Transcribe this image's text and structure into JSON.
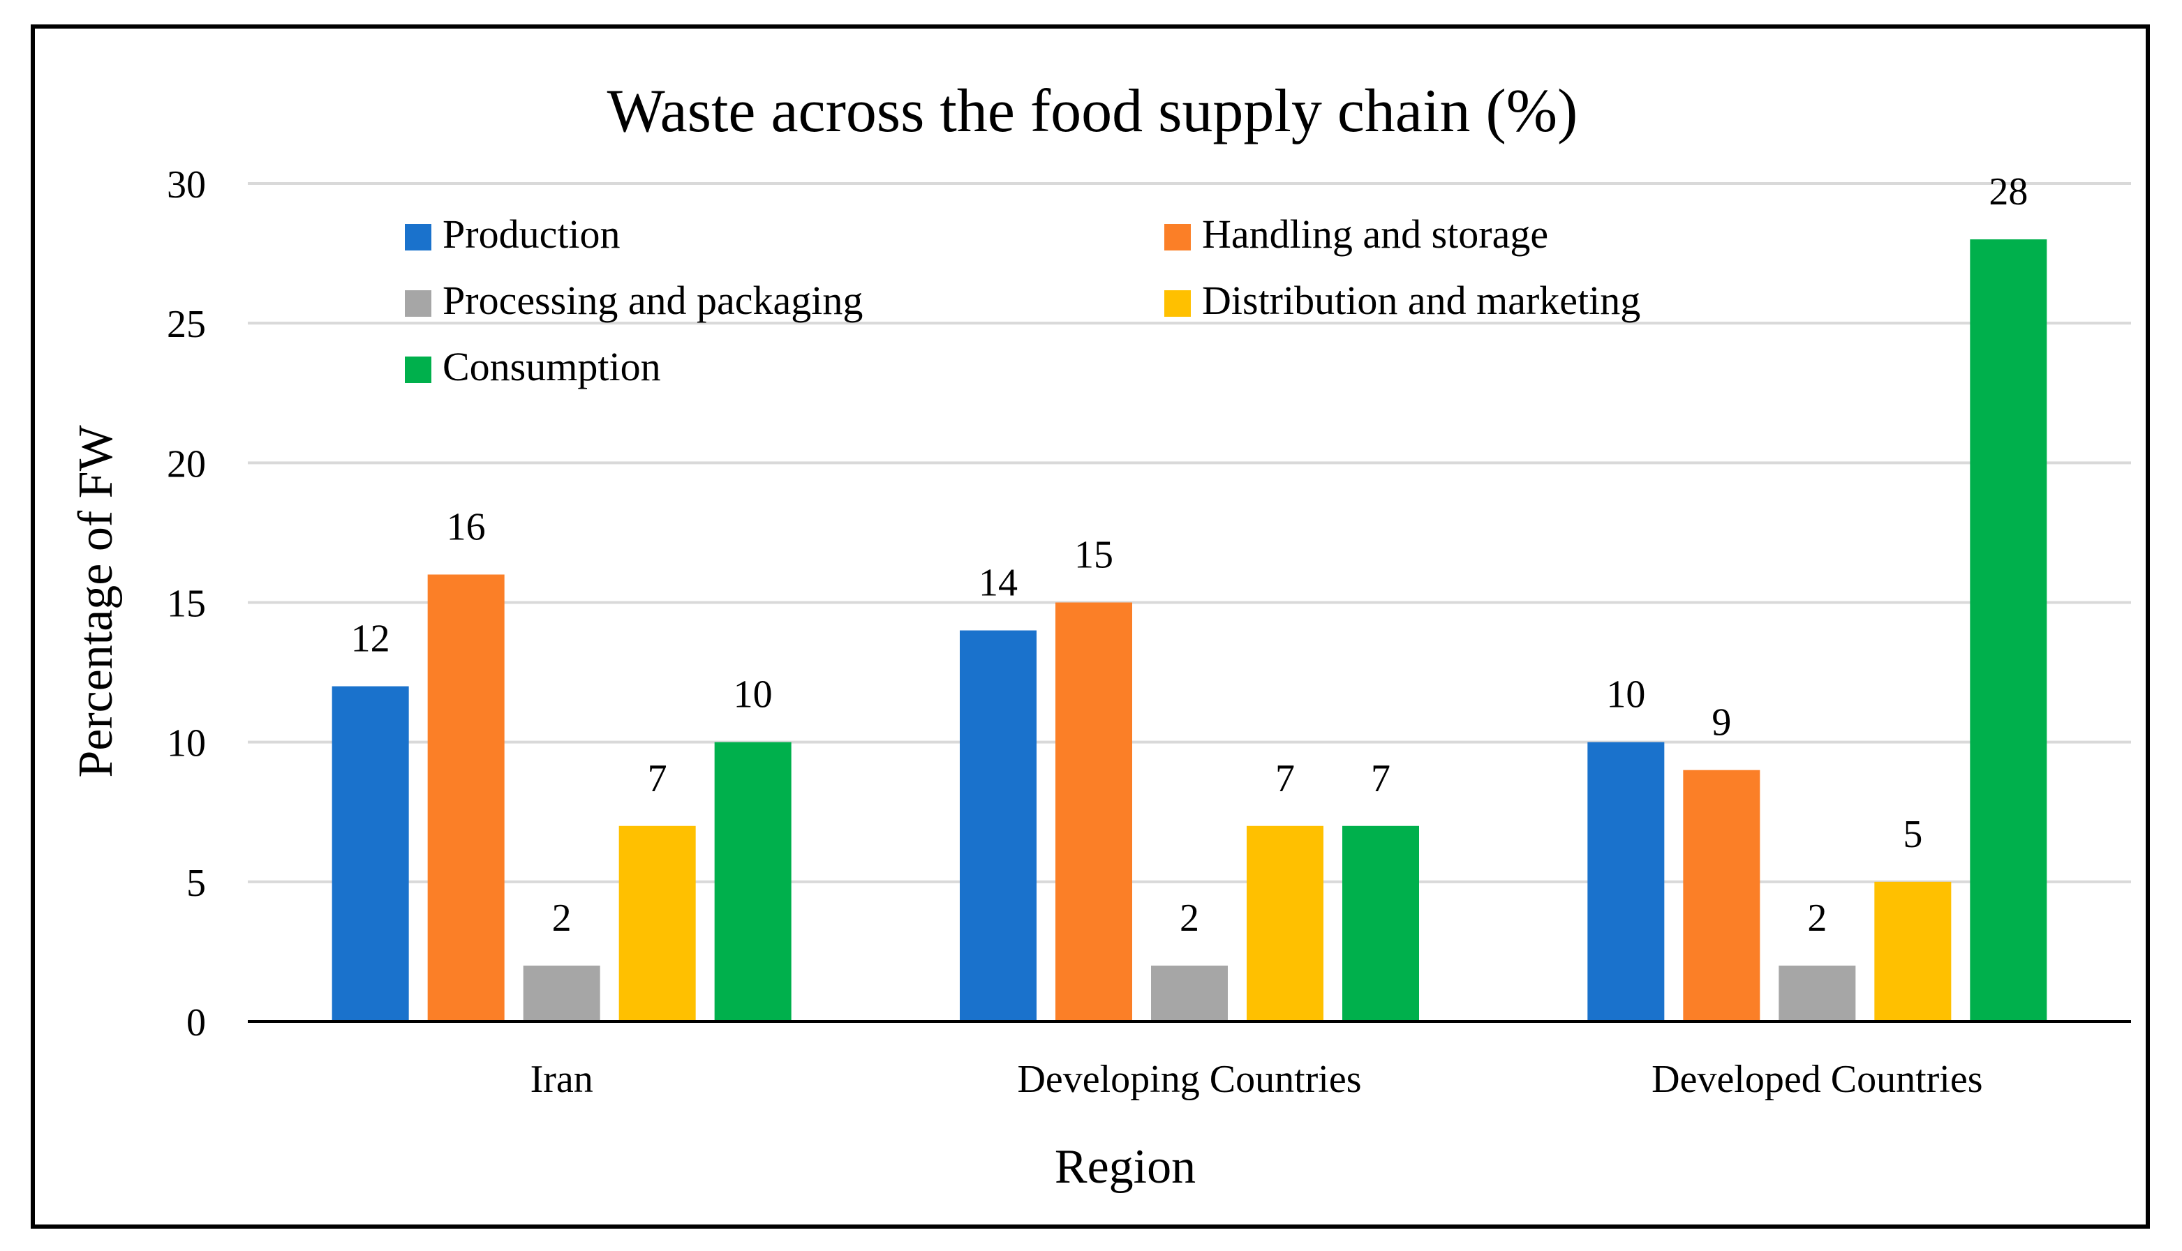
{
  "chart_data": {
    "type": "bar",
    "title": "Waste across the food supply chain (%)",
    "xlabel": "Region",
    "ylabel": "Percentage of FW",
    "ylim": [
      0,
      30
    ],
    "yticks": [
      "0",
      "5",
      "10",
      "15",
      "20",
      "25",
      "30"
    ],
    "grid": true,
    "legend_position": "top",
    "categories": [
      "Iran",
      "Developing Countries",
      "Developed Countries"
    ],
    "series": [
      {
        "name": "Production",
        "color": "#1a72cc",
        "values": [
          12,
          14,
          10
        ]
      },
      {
        "name": "Handling and storage",
        "color": "#fb7f27",
        "values": [
          16,
          15,
          9
        ]
      },
      {
        "name": "Processing and packaging",
        "color": "#a6a6a6",
        "values": [
          2,
          2,
          2
        ]
      },
      {
        "name": "Distribution and marketing",
        "color": "#ffc000",
        "values": [
          7,
          7,
          5
        ]
      },
      {
        "name": "Consumption",
        "color": "#00b04c",
        "values": [
          10,
          7,
          28
        ]
      }
    ]
  }
}
